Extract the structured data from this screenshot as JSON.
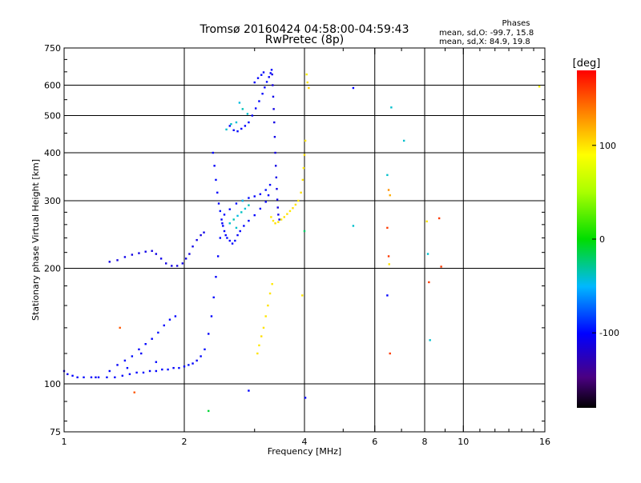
{
  "chart_data": {
    "type": "scatter",
    "title": "Tromsø 20160424 04:58:00-04:59:43",
    "subtitle": "RwPretec (8p)",
    "stats": {
      "heading": "Phases",
      "line1": "mean, sd,O: -99.7, 15.8",
      "line2": "mean, sd,X:  84.9, 19.8"
    },
    "xlabel": "Frequency [MHz]",
    "ylabel": "Stationary phase Virtual Height [km]",
    "xscale": "log",
    "yscale": "log",
    "xlim": [
      1,
      16
    ],
    "ylim": [
      75,
      750
    ],
    "xticks": [
      1,
      2,
      4,
      6,
      8,
      10,
      16
    ],
    "yticks": [
      75,
      100,
      200,
      300,
      400,
      500,
      600,
      750
    ],
    "grid": true,
    "colorbar": {
      "label": "[deg]",
      "min": -180,
      "max": 180,
      "ticks": [
        100,
        0,
        -100
      ],
      "tick_labels": [
        "100",
        "0",
        "-100"
      ]
    },
    "legend": "colorbar right",
    "series": [
      {
        "points": [
          [
            1.0,
            108,
            -110
          ],
          [
            1.02,
            106,
            -105
          ],
          [
            1.05,
            105,
            -100
          ],
          [
            1.08,
            104,
            -100
          ],
          [
            1.12,
            104,
            -98
          ],
          [
            1.17,
            104,
            -102
          ],
          [
            1.22,
            104,
            -100
          ],
          [
            1.28,
            104,
            -97
          ],
          [
            1.34,
            104,
            -100
          ],
          [
            1.4,
            105,
            -101
          ],
          [
            1.46,
            106,
            -99
          ],
          [
            1.52,
            107,
            -100
          ],
          [
            1.58,
            107,
            -96
          ],
          [
            1.64,
            108,
            -101
          ],
          [
            1.7,
            108,
            -99
          ],
          [
            1.76,
            109,
            -100
          ],
          [
            1.82,
            109,
            -97
          ],
          [
            1.88,
            110,
            -102
          ],
          [
            1.94,
            110,
            -98
          ],
          [
            2.0,
            111,
            -100
          ],
          [
            2.05,
            112,
            -95
          ],
          [
            2.1,
            113,
            -100
          ],
          [
            2.15,
            115,
            -103
          ],
          [
            2.2,
            118,
            -99
          ],
          [
            2.25,
            123,
            -97
          ],
          [
            2.3,
            135,
            -102
          ],
          [
            2.34,
            150,
            -100
          ],
          [
            2.37,
            168,
            -98
          ],
          [
            2.4,
            190,
            -101
          ],
          [
            2.43,
            215,
            -100
          ],
          [
            2.46,
            240,
            -97
          ],
          [
            2.49,
            262,
            -102
          ],
          [
            2.52,
            276,
            -100
          ],
          [
            2.6,
            285,
            -99
          ],
          [
            2.7,
            295,
            -98
          ],
          [
            2.8,
            300,
            -100
          ],
          [
            2.9,
            305,
            -97
          ],
          [
            3.0,
            308,
            -101
          ],
          [
            3.1,
            312,
            -100
          ],
          [
            3.2,
            320,
            -96
          ]
        ]
      },
      {
        "points": [
          [
            1.2,
            104,
            -103
          ],
          [
            1.3,
            108,
            -99
          ],
          [
            1.36,
            112,
            -102
          ],
          [
            1.42,
            115,
            -100
          ],
          [
            1.48,
            118,
            -97
          ],
          [
            1.54,
            123,
            -101
          ],
          [
            1.6,
            127,
            -99
          ],
          [
            1.66,
            131,
            -100
          ],
          [
            1.72,
            136,
            -96
          ],
          [
            1.78,
            142,
            -101
          ],
          [
            1.84,
            147,
            -99
          ],
          [
            1.9,
            150,
            -100
          ],
          [
            1.44,
            110,
            -97
          ],
          [
            1.56,
            120,
            -103
          ],
          [
            1.7,
            114,
            -98
          ]
        ]
      },
      {
        "points": [
          [
            1.3,
            208,
            -110
          ],
          [
            1.36,
            210,
            -112
          ],
          [
            1.42,
            214,
            -108
          ],
          [
            1.48,
            217,
            -111
          ],
          [
            1.54,
            219,
            -110
          ],
          [
            1.6,
            221,
            -109
          ],
          [
            1.66,
            222,
            -112
          ],
          [
            1.7,
            218,
            -110
          ],
          [
            1.75,
            212,
            -108
          ],
          [
            1.8,
            206,
            -111
          ],
          [
            1.86,
            203,
            -110
          ],
          [
            1.92,
            203,
            -112
          ],
          [
            1.98,
            206,
            -109
          ],
          [
            2.02,
            212,
            -110
          ],
          [
            2.06,
            218,
            -111
          ],
          [
            2.1,
            228,
            -108
          ],
          [
            2.15,
            237,
            -110
          ],
          [
            2.2,
            244,
            -112
          ],
          [
            2.24,
            248,
            -109
          ]
        ]
      },
      {
        "points": [
          [
            2.36,
            400,
            -100
          ],
          [
            2.38,
            370,
            -102
          ],
          [
            2.4,
            340,
            -98
          ],
          [
            2.42,
            315,
            -101
          ],
          [
            2.44,
            295,
            -100
          ],
          [
            2.46,
            282,
            -96
          ],
          [
            2.48,
            268,
            -102
          ],
          [
            2.5,
            258,
            -99
          ],
          [
            2.52,
            250,
            -101
          ],
          [
            2.54,
            244,
            -100
          ],
          [
            2.56,
            240,
            -98
          ],
          [
            2.6,
            236,
            -102
          ],
          [
            2.64,
            232,
            -100
          ],
          [
            2.68,
            236,
            -97
          ],
          [
            2.72,
            244,
            -101
          ],
          [
            2.76,
            250,
            -100
          ],
          [
            2.82,
            258,
            -99
          ],
          [
            2.9,
            266,
            -102
          ],
          [
            3.0,
            275,
            -100
          ],
          [
            3.1,
            286,
            -98
          ],
          [
            3.2,
            298,
            -101
          ],
          [
            3.25,
            310,
            -100
          ],
          [
            3.28,
            330,
            -99
          ]
        ]
      },
      {
        "points": [
          [
            2.6,
            262,
            -40
          ],
          [
            2.66,
            268,
            -35
          ],
          [
            2.72,
            274,
            -45
          ],
          [
            2.78,
            280,
            -38
          ],
          [
            2.84,
            286,
            -42
          ],
          [
            2.9,
            292,
            -36
          ],
          [
            2.7,
            255,
            -40
          ],
          [
            2.8,
            300,
            -44
          ]
        ]
      },
      {
        "points": [
          [
            2.6,
            470,
            -100
          ],
          [
            2.66,
            458,
            -102
          ],
          [
            2.72,
            455,
            -98
          ],
          [
            2.78,
            462,
            -101
          ],
          [
            2.84,
            470,
            -100
          ],
          [
            2.9,
            480,
            -97
          ],
          [
            2.96,
            500,
            -102
          ],
          [
            3.02,
            522,
            -100
          ],
          [
            3.08,
            545,
            -99
          ],
          [
            3.14,
            570,
            -101
          ],
          [
            3.18,
            592,
            -100
          ],
          [
            3.22,
            612,
            -98
          ],
          [
            3.26,
            630,
            -102
          ],
          [
            3.29,
            645,
            -100
          ],
          [
            3.31,
            658,
            -99
          ],
          [
            3.0,
            610,
            -101
          ],
          [
            3.06,
            626,
            -100
          ],
          [
            3.12,
            638,
            -98
          ],
          [
            3.16,
            648,
            -102
          ]
        ]
      },
      {
        "points": [
          [
            2.55,
            460,
            -40
          ],
          [
            2.62,
            475,
            -38
          ],
          [
            2.7,
            480,
            -42
          ],
          [
            2.8,
            520,
            -36
          ],
          [
            2.88,
            505,
            -40
          ],
          [
            2.75,
            540,
            -44
          ]
        ]
      },
      {
        "points": [
          [
            3.32,
            640,
            -110
          ],
          [
            3.33,
            600,
            -112
          ],
          [
            3.34,
            560,
            -108
          ],
          [
            3.35,
            520,
            -111
          ],
          [
            3.36,
            480,
            -110
          ],
          [
            3.37,
            440,
            -109
          ],
          [
            3.38,
            400,
            -112
          ],
          [
            3.39,
            370,
            -110
          ],
          [
            3.4,
            345,
            -108
          ],
          [
            3.41,
            322,
            -111
          ],
          [
            3.42,
            302,
            -110
          ],
          [
            3.43,
            288,
            -112
          ],
          [
            3.44,
            276,
            -109
          ],
          [
            3.46,
            268,
            -110
          ]
        ]
      },
      {
        "points": [
          [
            3.3,
            272,
            100
          ],
          [
            3.34,
            266,
            98
          ],
          [
            3.38,
            262,
            102
          ],
          [
            3.44,
            264,
            100
          ],
          [
            3.5,
            268,
            99
          ],
          [
            3.56,
            272,
            101
          ],
          [
            3.62,
            277,
            100
          ],
          [
            3.68,
            282,
            98
          ],
          [
            3.74,
            287,
            102
          ],
          [
            3.8,
            293,
            100
          ],
          [
            3.86,
            300,
            99
          ],
          [
            3.92,
            315,
            101
          ],
          [
            3.96,
            340,
            100
          ],
          [
            3.98,
            365,
            98
          ],
          [
            4.0,
            395,
            102
          ],
          [
            4.02,
            430,
            100
          ]
        ]
      },
      {
        "points": [
          [
            3.05,
            120,
            100
          ],
          [
            3.08,
            126,
            98
          ],
          [
            3.12,
            133,
            102
          ],
          [
            3.16,
            140,
            100
          ],
          [
            3.2,
            150,
            99
          ],
          [
            3.24,
            160,
            101
          ],
          [
            3.28,
            172,
            100
          ],
          [
            3.32,
            182,
            98
          ]
        ]
      },
      {
        "points": [
          [
            4.05,
            640,
            95
          ],
          [
            4.07,
            610,
            100
          ],
          [
            4.1,
            590,
            105
          ],
          [
            5.3,
            590,
            -100
          ],
          [
            5.3,
            258,
            -40
          ],
          [
            6.45,
            350,
            -40
          ],
          [
            6.5,
            320,
            130
          ],
          [
            6.55,
            310,
            120
          ],
          [
            6.45,
            255,
            160
          ],
          [
            6.5,
            215,
            160
          ],
          [
            6.52,
            205,
            100
          ],
          [
            6.45,
            170,
            -100
          ],
          [
            6.55,
            120,
            160
          ],
          [
            6.6,
            525,
            -40
          ],
          [
            7.1,
            430,
            -40
          ],
          [
            8.1,
            265,
            100
          ],
          [
            8.15,
            218,
            -40
          ],
          [
            8.2,
            184,
            160
          ],
          [
            8.25,
            130,
            -40
          ],
          [
            8.7,
            270,
            160
          ],
          [
            8.8,
            202,
            160
          ],
          [
            15.5,
            595,
            95
          ],
          [
            4.0,
            250,
            -20
          ],
          [
            3.95,
            170,
            100
          ],
          [
            2.3,
            85,
            -10
          ],
          [
            2.9,
            96,
            -100
          ],
          [
            1.5,
            95,
            150
          ],
          [
            1.38,
            140,
            150
          ],
          [
            4.02,
            92,
            -100
          ]
        ]
      }
    ]
  }
}
